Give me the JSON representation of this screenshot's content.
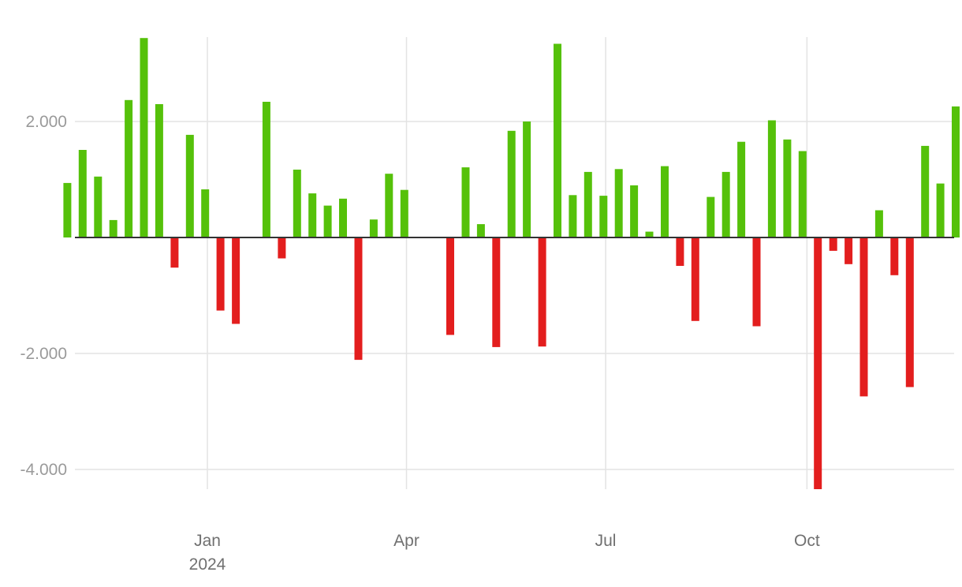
{
  "chart_data": {
    "type": "bar",
    "x_axis": {
      "ticks": [
        {
          "date": "2024-01-01",
          "label": "Jan",
          "sublabel": "2024"
        },
        {
          "date": "2024-04-01",
          "label": "Apr",
          "sublabel": ""
        },
        {
          "date": "2024-07-01",
          "label": "Jul",
          "sublabel": ""
        },
        {
          "date": "2024-10-01",
          "label": "Oct",
          "sublabel": ""
        }
      ]
    },
    "y_axis": {
      "ticks": [
        {
          "value": 2000,
          "label": "2.000"
        },
        {
          "value": -2000,
          "label": "-2.000"
        },
        {
          "value": -4000,
          "label": "-4.000"
        }
      ]
    },
    "colors": {
      "positive": "#55c10a",
      "negative": "#e31e1e",
      "grid": "#e3e3e3",
      "zero_line": "#333333"
    },
    "grid": true,
    "bars": [
      {
        "x": "2023-10-29",
        "y": 940
      },
      {
        "x": "2023-11-05",
        "y": 1510
      },
      {
        "x": "2023-11-12",
        "y": 1050
      },
      {
        "x": "2023-11-19",
        "y": 300
      },
      {
        "x": "2023-11-26",
        "y": 2370
      },
      {
        "x": "2023-12-03",
        "y": 3440
      },
      {
        "x": "2023-12-10",
        "y": 2300
      },
      {
        "x": "2023-12-17",
        "y": -520
      },
      {
        "x": "2023-12-24",
        "y": 1770
      },
      {
        "x": "2023-12-31",
        "y": 830
      },
      {
        "x": "2024-01-07",
        "y": -1260
      },
      {
        "x": "2024-01-14",
        "y": -1490
      },
      {
        "x": "2024-01-28",
        "y": 2340
      },
      {
        "x": "2024-02-04",
        "y": -360
      },
      {
        "x": "2024-02-11",
        "y": 1170
      },
      {
        "x": "2024-02-18",
        "y": 760
      },
      {
        "x": "2024-02-25",
        "y": 550
      },
      {
        "x": "2024-03-03",
        "y": 670
      },
      {
        "x": "2024-03-10",
        "y": -2110
      },
      {
        "x": "2024-03-17",
        "y": 310
      },
      {
        "x": "2024-03-24",
        "y": 1100
      },
      {
        "x": "2024-03-31",
        "y": 820
      },
      {
        "x": "2024-04-21",
        "y": -1680
      },
      {
        "x": "2024-04-28",
        "y": 1210
      },
      {
        "x": "2024-05-05",
        "y": 230
      },
      {
        "x": "2024-05-12",
        "y": -1890
      },
      {
        "x": "2024-05-19",
        "y": 1840
      },
      {
        "x": "2024-05-26",
        "y": 2000
      },
      {
        "x": "2024-06-02",
        "y": -1880
      },
      {
        "x": "2024-06-09",
        "y": 3340
      },
      {
        "x": "2024-06-16",
        "y": 730
      },
      {
        "x": "2024-06-23",
        "y": 1130
      },
      {
        "x": "2024-06-30",
        "y": 720
      },
      {
        "x": "2024-07-07",
        "y": 1180
      },
      {
        "x": "2024-07-14",
        "y": 900
      },
      {
        "x": "2024-07-21",
        "y": 100
      },
      {
        "x": "2024-07-28",
        "y": 1230
      },
      {
        "x": "2024-08-04",
        "y": -490
      },
      {
        "x": "2024-08-11",
        "y": -1440
      },
      {
        "x": "2024-08-18",
        "y": 700
      },
      {
        "x": "2024-08-25",
        "y": 1130
      },
      {
        "x": "2024-09-01",
        "y": 1650
      },
      {
        "x": "2024-09-08",
        "y": -1530
      },
      {
        "x": "2024-09-15",
        "y": 2020
      },
      {
        "x": "2024-09-22",
        "y": 1690
      },
      {
        "x": "2024-09-29",
        "y": 1490
      },
      {
        "x": "2024-10-06",
        "y": -4340
      },
      {
        "x": "2024-10-13",
        "y": -230
      },
      {
        "x": "2024-10-20",
        "y": -460
      },
      {
        "x": "2024-10-27",
        "y": -2740
      },
      {
        "x": "2024-11-03",
        "y": 470
      },
      {
        "x": "2024-11-10",
        "y": -650
      },
      {
        "x": "2024-11-17",
        "y": -2580
      },
      {
        "x": "2024-11-24",
        "y": 1580
      },
      {
        "x": "2024-12-01",
        "y": 930
      },
      {
        "x": "2024-12-08",
        "y": 2260
      }
    ]
  }
}
